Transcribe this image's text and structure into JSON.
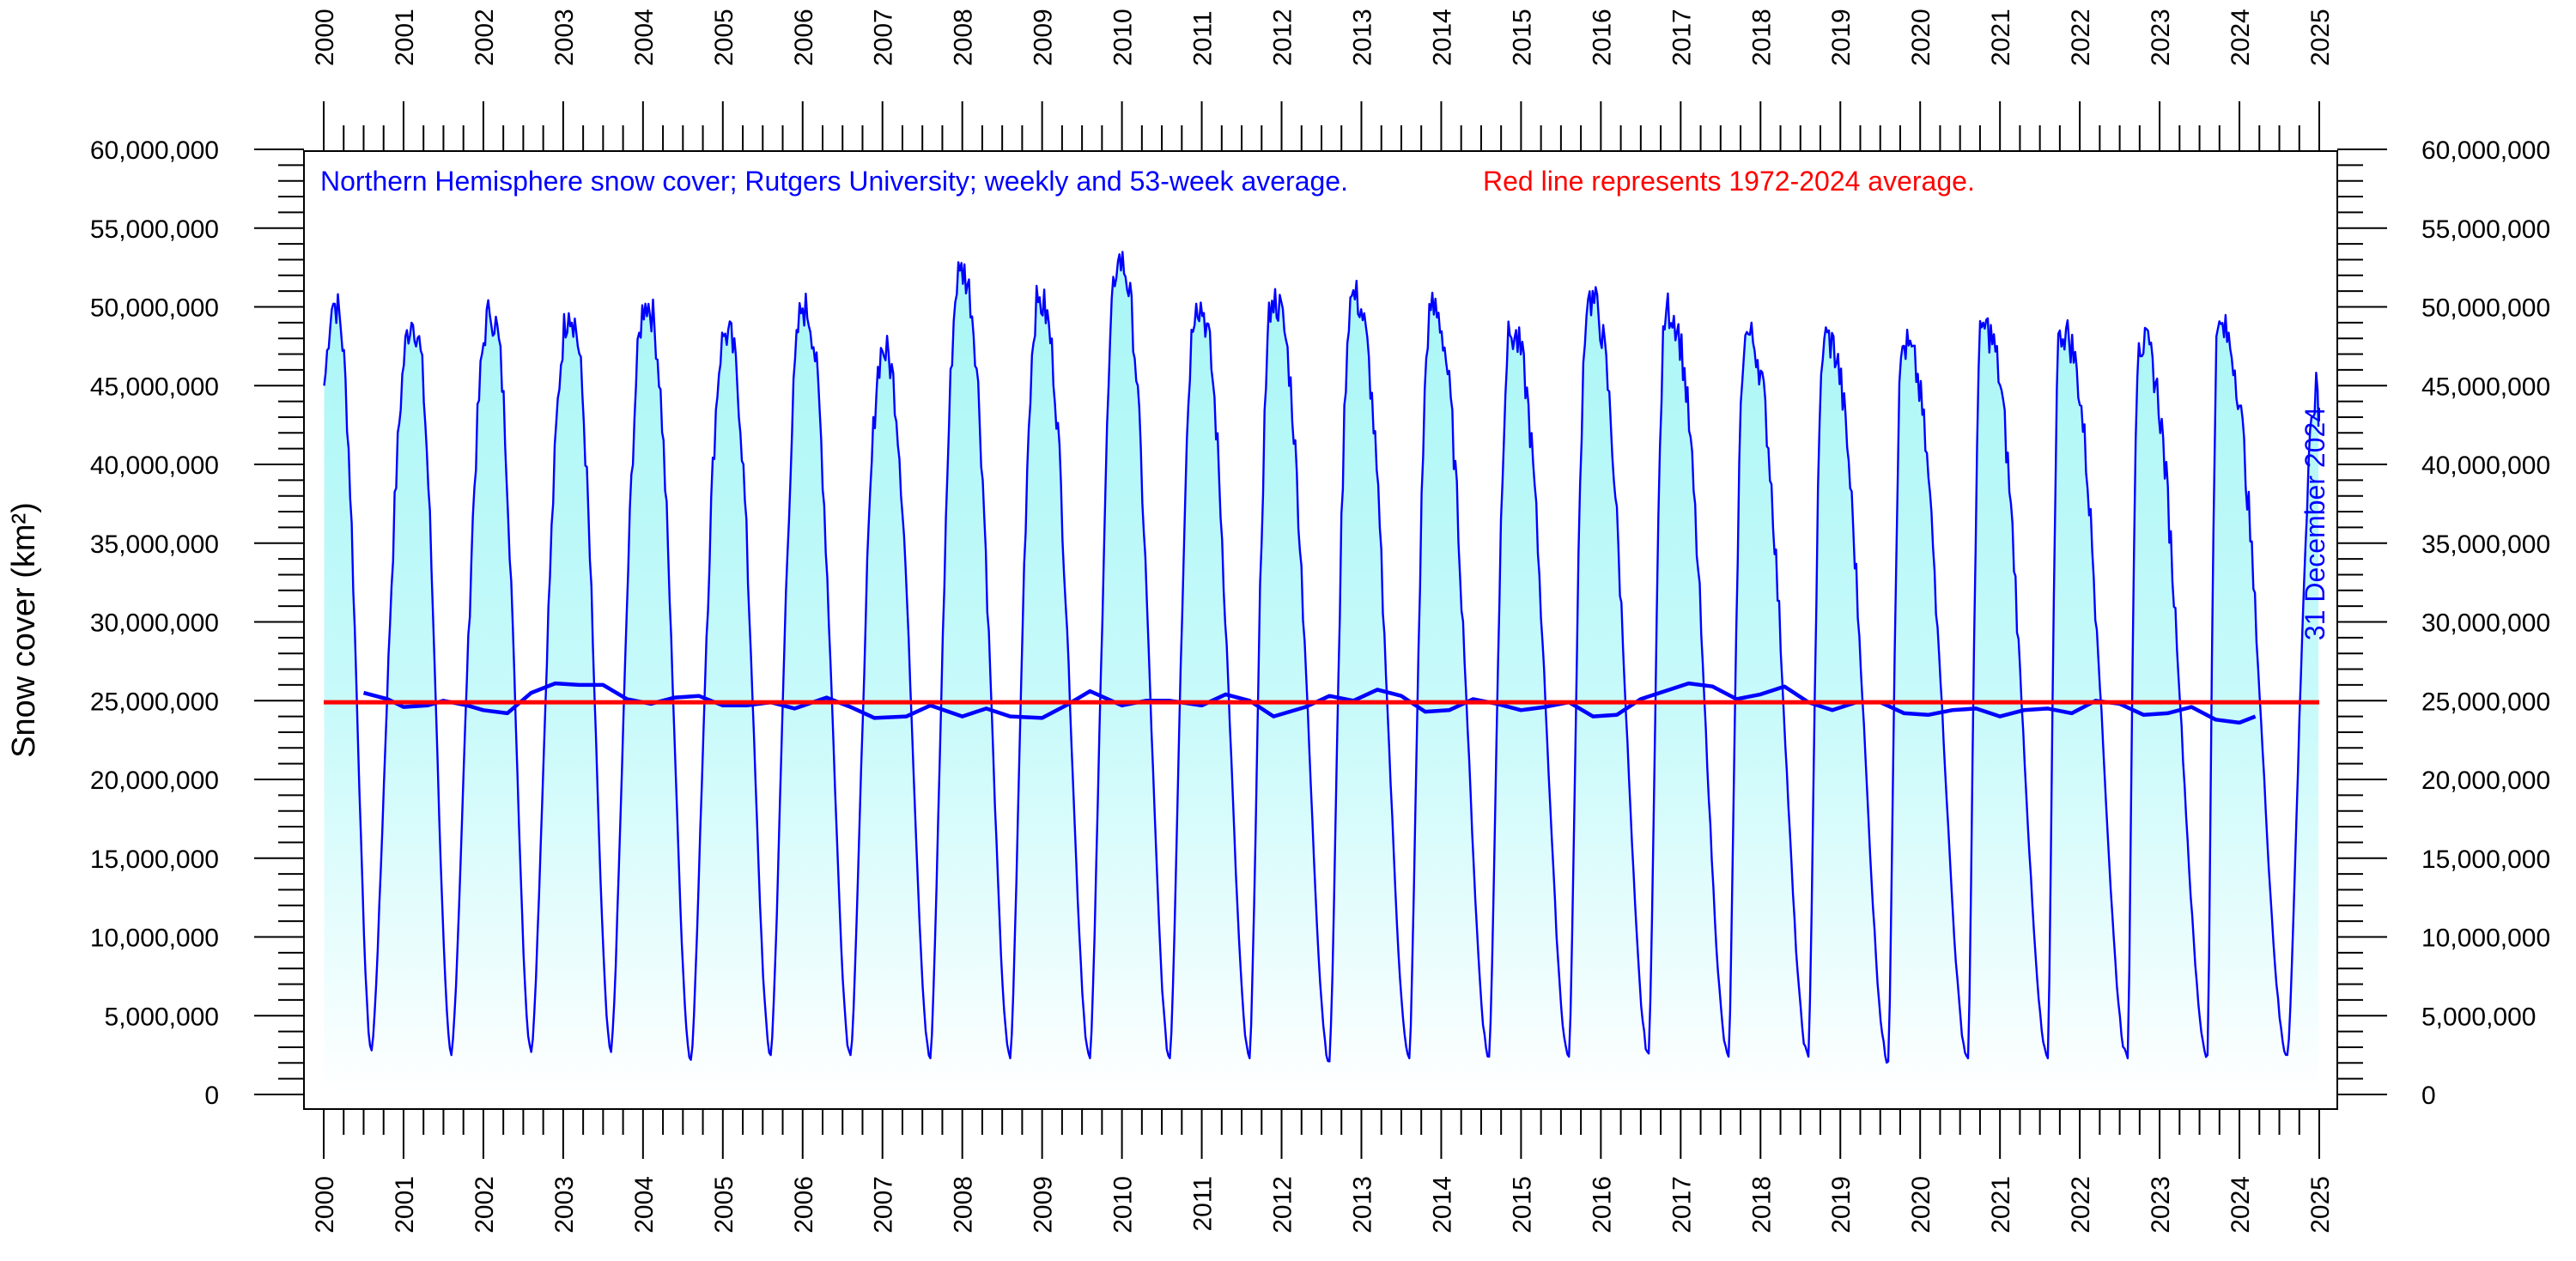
{
  "chart_data": {
    "type": "area",
    "caption_blue": "Northern Hemisphere  snow cover; Rutgers University; weekly and 53-week average.",
    "caption_red": "Red line represents 1972-2024 average.",
    "ylabel": "Snow cover (km²)",
    "end_note": "31 December 2024",
    "xlim": [
      2000,
      2025
    ],
    "ylim": [
      0,
      60000000
    ],
    "x_ticks": [
      2000,
      2001,
      2002,
      2003,
      2004,
      2005,
      2006,
      2007,
      2008,
      2009,
      2010,
      2011,
      2012,
      2013,
      2014,
      2015,
      2016,
      2017,
      2018,
      2019,
      2020,
      2021,
      2022,
      2023,
      2024,
      2025
    ],
    "x_tick_labels": [
      "2000",
      "2001",
      "2002",
      "2003",
      "2004",
      "2005",
      "2006",
      "2007",
      "2008",
      "2009",
      "2010",
      "2011",
      "2012",
      "2013",
      "2014",
      "2015",
      "2016",
      "2017",
      "2018",
      "2019",
      "2020",
      "2021",
      "2022",
      "2023",
      "2024",
      "2025"
    ],
    "y_ticks": [
      0,
      5000000,
      10000000,
      15000000,
      20000000,
      25000000,
      30000000,
      35000000,
      40000000,
      45000000,
      50000000,
      55000000,
      60000000
    ],
    "y_tick_labels": [
      "0",
      "5,000,000",
      "10,000,000",
      "15,000,000",
      "20,000,000",
      "25,000,000",
      "30,000,000",
      "35,000,000",
      "40,000,000",
      "45,000,000",
      "50,000,000",
      "55,000,000",
      "60,000,000"
    ],
    "grid": false,
    "colors": {
      "weekly_line": "#0000ff",
      "running_mean_line": "#0000ff",
      "long_term_average": "#ff0000",
      "fill_top": "#a8f6f6",
      "fill_bottom": "#ffffff"
    },
    "series": [
      {
        "kind": "weekly",
        "seasonal_peaks": [
          {
            "x": 2000.12,
            "y": 50200000
          },
          {
            "x": 2001.1,
            "y": 49000000
          },
          {
            "x": 2002.08,
            "y": 49500000
          },
          {
            "x": 2003.07,
            "y": 49600000
          },
          {
            "x": 2004.03,
            "y": 50200000
          },
          {
            "x": 2005.03,
            "y": 48300000
          },
          {
            "x": 2006.0,
            "y": 49900000
          },
          {
            "x": 2007.0,
            "y": 47200000
          },
          {
            "x": 2007.97,
            "y": 52300000
          },
          {
            "x": 2008.95,
            "y": 50300000
          },
          {
            "x": 2009.95,
            "y": 52900000
          },
          {
            "x": 2010.93,
            "y": 50200000
          },
          {
            "x": 2011.88,
            "y": 50400000
          },
          {
            "x": 2012.88,
            "y": 50700000
          },
          {
            "x": 2013.87,
            "y": 49800000
          },
          {
            "x": 2014.86,
            "y": 48200000
          },
          {
            "x": 2015.84,
            "y": 50500000
          },
          {
            "x": 2016.82,
            "y": 49800000
          },
          {
            "x": 2017.81,
            "y": 48200000
          },
          {
            "x": 2018.8,
            "y": 48000000
          },
          {
            "x": 2019.78,
            "y": 47500000
          },
          {
            "x": 2020.77,
            "y": 48700000
          },
          {
            "x": 2021.75,
            "y": 48500000
          },
          {
            "x": 2022.74,
            "y": 47700000
          },
          {
            "x": 2023.73,
            "y": 48600000
          },
          {
            "x": 2024.98,
            "y": 44700000
          }
        ],
        "seasonal_troughs": [
          {
            "x": 2000.6,
            "y": 2800000
          },
          {
            "x": 2001.6,
            "y": 2500000
          },
          {
            "x": 2002.6,
            "y": 2700000
          },
          {
            "x": 2003.6,
            "y": 2700000
          },
          {
            "x": 2004.6,
            "y": 2200000
          },
          {
            "x": 2005.6,
            "y": 2500000
          },
          {
            "x": 2006.6,
            "y": 2500000
          },
          {
            "x": 2007.6,
            "y": 2300000
          },
          {
            "x": 2008.6,
            "y": 2300000
          },
          {
            "x": 2009.6,
            "y": 2300000
          },
          {
            "x": 2010.6,
            "y": 2300000
          },
          {
            "x": 2011.6,
            "y": 2300000
          },
          {
            "x": 2012.6,
            "y": 2100000
          },
          {
            "x": 2013.6,
            "y": 2300000
          },
          {
            "x": 2014.6,
            "y": 2400000
          },
          {
            "x": 2015.6,
            "y": 2400000
          },
          {
            "x": 2016.6,
            "y": 2600000
          },
          {
            "x": 2017.6,
            "y": 2400000
          },
          {
            "x": 2018.6,
            "y": 2400000
          },
          {
            "x": 2019.6,
            "y": 2100000
          },
          {
            "x": 2020.6,
            "y": 2300000
          },
          {
            "x": 2021.6,
            "y": 2300000
          },
          {
            "x": 2022.6,
            "y": 2300000
          },
          {
            "x": 2023.6,
            "y": 2500000
          },
          {
            "x": 2024.6,
            "y": 2500000
          }
        ]
      },
      {
        "kind": "53-week average",
        "points": [
          {
            "x": 2000.5,
            "y": 25500000
          },
          {
            "x": 2000.8,
            "y": 25100000
          },
          {
            "x": 2001.0,
            "y": 24600000
          },
          {
            "x": 2001.3,
            "y": 24700000
          },
          {
            "x": 2001.5,
            "y": 25000000
          },
          {
            "x": 2001.8,
            "y": 24700000
          },
          {
            "x": 2002.0,
            "y": 24400000
          },
          {
            "x": 2002.3,
            "y": 24200000
          },
          {
            "x": 2002.6,
            "y": 25500000
          },
          {
            "x": 2002.9,
            "y": 26100000
          },
          {
            "x": 2003.2,
            "y": 26000000
          },
          {
            "x": 2003.5,
            "y": 26000000
          },
          {
            "x": 2003.8,
            "y": 25100000
          },
          {
            "x": 2004.1,
            "y": 24800000
          },
          {
            "x": 2004.4,
            "y": 25200000
          },
          {
            "x": 2004.7,
            "y": 25300000
          },
          {
            "x": 2005.0,
            "y": 24700000
          },
          {
            "x": 2005.3,
            "y": 24700000
          },
          {
            "x": 2005.6,
            "y": 24900000
          },
          {
            "x": 2005.9,
            "y": 24500000
          },
          {
            "x": 2006.3,
            "y": 25200000
          },
          {
            "x": 2006.6,
            "y": 24600000
          },
          {
            "x": 2006.9,
            "y": 23900000
          },
          {
            "x": 2007.3,
            "y": 24000000
          },
          {
            "x": 2007.6,
            "y": 24700000
          },
          {
            "x": 2008.0,
            "y": 24000000
          },
          {
            "x": 2008.3,
            "y": 24500000
          },
          {
            "x": 2008.6,
            "y": 24000000
          },
          {
            "x": 2009.0,
            "y": 23900000
          },
          {
            "x": 2009.3,
            "y": 24700000
          },
          {
            "x": 2009.6,
            "y": 25600000
          },
          {
            "x": 2010.0,
            "y": 24700000
          },
          {
            "x": 2010.3,
            "y": 25000000
          },
          {
            "x": 2010.6,
            "y": 25000000
          },
          {
            "x": 2011.0,
            "y": 24700000
          },
          {
            "x": 2011.3,
            "y": 25400000
          },
          {
            "x": 2011.6,
            "y": 25000000
          },
          {
            "x": 2011.9,
            "y": 24000000
          },
          {
            "x": 2012.3,
            "y": 24600000
          },
          {
            "x": 2012.6,
            "y": 25300000
          },
          {
            "x": 2012.9,
            "y": 25000000
          },
          {
            "x": 2013.2,
            "y": 25700000
          },
          {
            "x": 2013.5,
            "y": 25300000
          },
          {
            "x": 2013.8,
            "y": 24300000
          },
          {
            "x": 2014.1,
            "y": 24400000
          },
          {
            "x": 2014.4,
            "y": 25100000
          },
          {
            "x": 2014.7,
            "y": 24800000
          },
          {
            "x": 2015.0,
            "y": 24400000
          },
          {
            "x": 2015.3,
            "y": 24600000
          },
          {
            "x": 2015.6,
            "y": 24900000
          },
          {
            "x": 2015.9,
            "y": 24000000
          },
          {
            "x": 2016.2,
            "y": 24100000
          },
          {
            "x": 2016.5,
            "y": 25100000
          },
          {
            "x": 2016.8,
            "y": 25600000
          },
          {
            "x": 2017.1,
            "y": 26100000
          },
          {
            "x": 2017.4,
            "y": 25900000
          },
          {
            "x": 2017.7,
            "y": 25100000
          },
          {
            "x": 2018.0,
            "y": 25400000
          },
          {
            "x": 2018.3,
            "y": 25900000
          },
          {
            "x": 2018.6,
            "y": 24900000
          },
          {
            "x": 2018.9,
            "y": 24400000
          },
          {
            "x": 2019.2,
            "y": 24900000
          },
          {
            "x": 2019.5,
            "y": 24900000
          },
          {
            "x": 2019.8,
            "y": 24200000
          },
          {
            "x": 2020.1,
            "y": 24100000
          },
          {
            "x": 2020.4,
            "y": 24400000
          },
          {
            "x": 2020.7,
            "y": 24500000
          },
          {
            "x": 2021.0,
            "y": 24000000
          },
          {
            "x": 2021.3,
            "y": 24400000
          },
          {
            "x": 2021.6,
            "y": 24500000
          },
          {
            "x": 2021.9,
            "y": 24200000
          },
          {
            "x": 2022.2,
            "y": 25000000
          },
          {
            "x": 2022.5,
            "y": 24800000
          },
          {
            "x": 2022.8,
            "y": 24100000
          },
          {
            "x": 2023.1,
            "y": 24200000
          },
          {
            "x": 2023.4,
            "y": 24600000
          },
          {
            "x": 2023.7,
            "y": 23800000
          },
          {
            "x": 2024.0,
            "y": 23600000
          },
          {
            "x": 2024.2,
            "y": 24000000
          }
        ]
      },
      {
        "kind": "1972-2024 average",
        "y": 24900000,
        "x_range": [
          2000.0,
          2025.0
        ]
      }
    ]
  }
}
